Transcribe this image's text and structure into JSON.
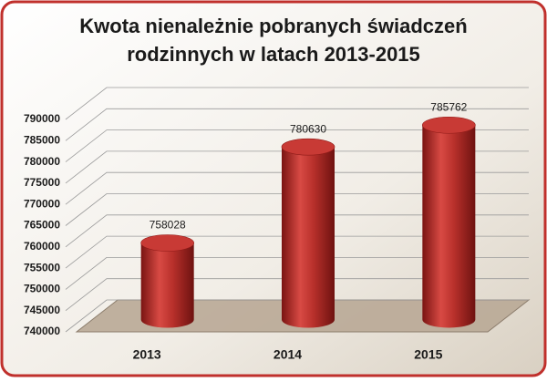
{
  "chart_data": {
    "type": "bar3d",
    "title": [
      "Kwota nienależnie pobranych świadczeń",
      "rodzinnych w latach 2013-2015"
    ],
    "categories": [
      "2013",
      "2014",
      "2015"
    ],
    "values": [
      758028,
      780630,
      785762
    ],
    "color": "#c0302c",
    "ylim": [
      740000,
      790000
    ],
    "yticks": [
      740000,
      745000,
      750000,
      755000,
      760000,
      765000,
      770000,
      775000,
      780000,
      785000,
      790000
    ],
    "grid": true
  }
}
